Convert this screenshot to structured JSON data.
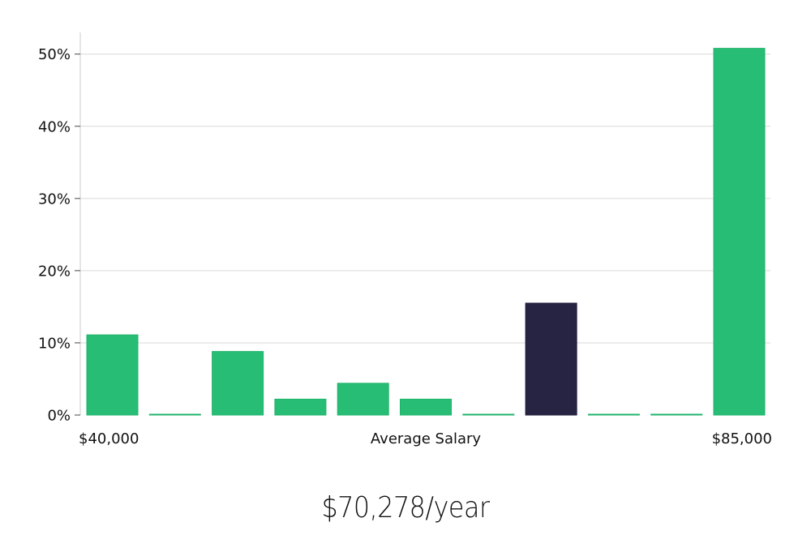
{
  "chart_data": {
    "type": "bar",
    "title": "",
    "xlabel": "Average Salary",
    "ylabel": "",
    "x_range_labels": {
      "min": "$40,000",
      "max": "$85,000"
    },
    "ylim": [
      0,
      53
    ],
    "yticks": [
      0,
      10,
      20,
      30,
      40,
      50
    ],
    "ytick_labels": [
      "0%",
      "10%",
      "20%",
      "30%",
      "40%",
      "50%"
    ],
    "grid": true,
    "bins": 11,
    "values": [
      11.1,
      0.1,
      8.8,
      2.2,
      4.4,
      2.2,
      0.1,
      15.5,
      0.1,
      0.1,
      50.8
    ],
    "highlight_index": 7,
    "colors": {
      "default": "#27bd74",
      "highlight": "#272443",
      "grid": "#d9d9d9",
      "axis": "#cccccc"
    }
  },
  "salary_readout": "$70,278/year"
}
